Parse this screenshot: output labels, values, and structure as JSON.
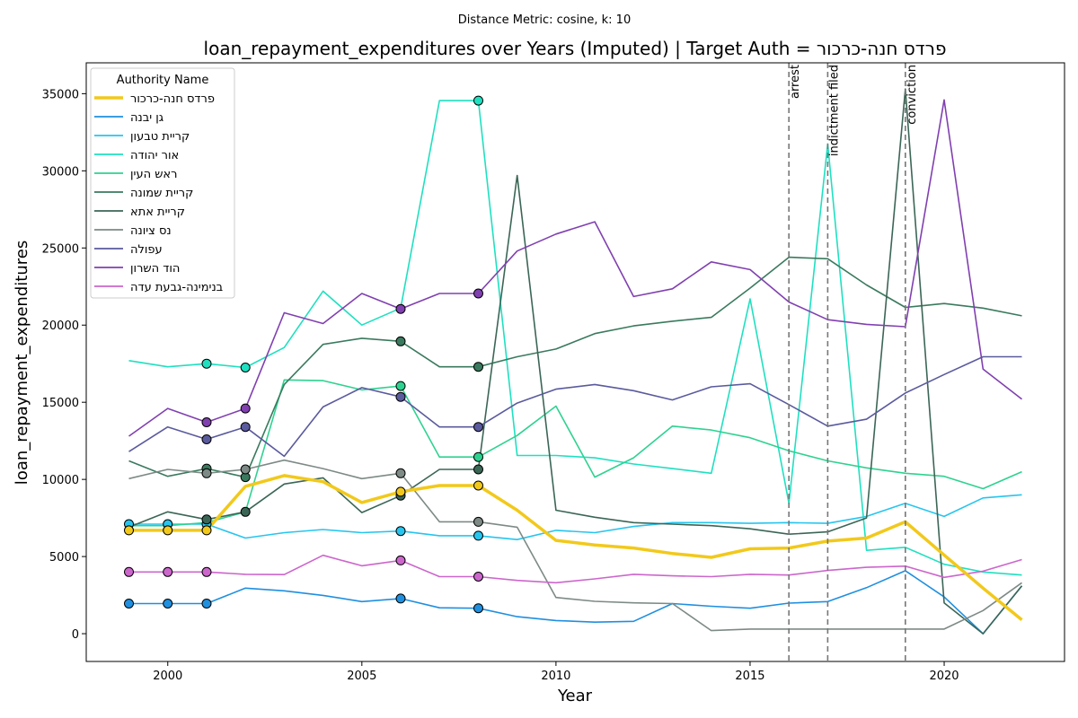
{
  "chart_data": {
    "type": "line",
    "suptitle": "Distance Metric: cosine, k: 10",
    "title": "loan_repayment_expenditures over Years (Imputed) | Target Auth = פרדס חנה-כרכור",
    "xlabel": "Year",
    "ylabel": "loan_repayment_expenditures",
    "xlim": [
      1997.9,
      2023.1
    ],
    "ylim": [
      -1800,
      37000
    ],
    "xticks": [
      2000,
      2005,
      2010,
      2015,
      2020
    ],
    "yticks": [
      0,
      5000,
      10000,
      15000,
      20000,
      25000,
      30000,
      35000
    ],
    "grid": false,
    "legend": {
      "title": "Authority Name",
      "placement": "upper left"
    },
    "x": [
      1999,
      2000,
      2001,
      2002,
      2003,
      2004,
      2005,
      2006,
      2007,
      2008,
      2009,
      2010,
      2011,
      2012,
      2013,
      2014,
      2015,
      2016,
      2017,
      2018,
      2019,
      2020,
      2021,
      2022
    ],
    "series": [
      {
        "name": "פרדס חנה-כרכור",
        "color": "#f2c91b",
        "target": true,
        "values": [
          6700,
          6700,
          6700,
          9550,
          10250,
          9850,
          8500,
          9200,
          9600,
          9600,
          8000,
          6050,
          5750,
          5550,
          5200,
          4950,
          5500,
          5550,
          6000,
          6200,
          7250,
          5100,
          2950,
          900
        ],
        "imputed_years": [
          1999,
          2000,
          2001,
          2006,
          2008
        ]
      },
      {
        "name": "גן יבנה",
        "color": "#1f8fe0",
        "values": [
          1950,
          1950,
          1950,
          2950,
          2780,
          2480,
          2080,
          2280,
          1680,
          1650,
          1100,
          850,
          750,
          800,
          1950,
          1780,
          1650,
          1980,
          2080,
          2980,
          4080,
          2380,
          0,
          3100
        ],
        "imputed_years": [
          1999,
          2000,
          2001,
          2006,
          2008
        ]
      },
      {
        "name": "קריית טבעון",
        "color": "#26c5ef",
        "values": [
          7100,
          7100,
          7100,
          6200,
          6550,
          6750,
          6550,
          6650,
          6350,
          6350,
          6100,
          6700,
          6550,
          6950,
          7200,
          7200,
          7150,
          7200,
          7150,
          7600,
          8450,
          7600,
          8800,
          9000
        ],
        "imputed_years": [
          1999,
          2000,
          2001,
          2006,
          2008
        ]
      },
      {
        "name": "אור יהודה",
        "color": "#1fe0c0",
        "values": [
          17700,
          17300,
          17500,
          17250,
          18550,
          22200,
          20000,
          21100,
          34550,
          34550,
          11550,
          11550,
          11400,
          11000,
          10700,
          10400,
          21700,
          8450,
          31750,
          5400,
          5600,
          4500,
          4000,
          3800
        ],
        "imputed_years": [
          2001,
          2002,
          2008
        ]
      },
      {
        "name": "ראש העין",
        "color": "#2ed290",
        "values": [
          7000,
          7000,
          7200,
          7900,
          16450,
          16400,
          15800,
          16050,
          11450,
          11450,
          12850,
          14750,
          10150,
          11400,
          13450,
          13200,
          12700,
          11850,
          11200,
          10750,
          10400,
          10200,
          9400,
          10500
        ],
        "imputed_years": [
          2006,
          2008
        ]
      },
      {
        "name": "קריית שמונה",
        "color": "#3a7a5e",
        "values": [
          11200,
          10200,
          10700,
          10150,
          16150,
          18750,
          19150,
          18950,
          17300,
          17300,
          17950,
          18450,
          19450,
          19950,
          20250,
          20500,
          22400,
          24400,
          24300,
          22600,
          21150,
          21400,
          21100,
          20600
        ],
        "imputed_years": [
          2001,
          2002,
          2006,
          2008
        ]
      },
      {
        "name": "קריית אתא",
        "color": "#3b6656",
        "values": [
          6900,
          7900,
          7400,
          7900,
          9700,
          10100,
          7850,
          8950,
          10650,
          10650,
          29700,
          8000,
          7550,
          7200,
          7100,
          7000,
          6800,
          6450,
          6600,
          7500,
          35300,
          2000,
          0,
          3100
        ],
        "imputed_years": [
          2001,
          2002,
          2006,
          2008
        ]
      },
      {
        "name": "נס ציונה",
        "color": "#7d8a86",
        "values": [
          10050,
          10650,
          10400,
          10650,
          11250,
          10700,
          10050,
          10400,
          7250,
          7250,
          6900,
          2350,
          2100,
          2000,
          1950,
          200,
          300,
          300,
          300,
          300,
          300,
          300,
          1500,
          3300
        ],
        "imputed_years": [
          2001,
          2002,
          2006,
          2008
        ]
      },
      {
        "name": "עפולה",
        "color": "#5a5a9e",
        "values": [
          11800,
          13400,
          12600,
          13400,
          11500,
          14700,
          15950,
          15350,
          13400,
          13400,
          14950,
          15850,
          16150,
          15750,
          15150,
          16000,
          16200,
          14850,
          13450,
          13900,
          15600,
          16800,
          17950,
          17950
        ],
        "imputed_years": [
          2001,
          2002,
          2006,
          2008
        ]
      },
      {
        "name": "הוד השרון",
        "color": "#8040b0",
        "values": [
          12800,
          14600,
          13700,
          14600,
          20800,
          20100,
          22050,
          21050,
          22050,
          22050,
          24800,
          25900,
          26700,
          21850,
          22350,
          24100,
          23600,
          21500,
          20350,
          20050,
          19900,
          34600,
          17150,
          15200
        ],
        "imputed_years": [
          2001,
          2002,
          2006,
          2008
        ]
      },
      {
        "name": "בנימינה-גבעת עדה",
        "color": "#cc66cc",
        "values": [
          4000,
          4000,
          4000,
          3850,
          3830,
          5080,
          4400,
          4750,
          3700,
          3700,
          3450,
          3300,
          3550,
          3850,
          3750,
          3700,
          3850,
          3800,
          4100,
          4300,
          4380,
          3650,
          4050,
          4800
        ],
        "imputed_years": [
          1999,
          2000,
          2001,
          2006,
          2008
        ]
      }
    ],
    "events": [
      {
        "year": 2016,
        "label": "arrest"
      },
      {
        "year": 2017,
        "label": "indictment filed"
      },
      {
        "year": 2019,
        "label": "conviction"
      }
    ]
  }
}
